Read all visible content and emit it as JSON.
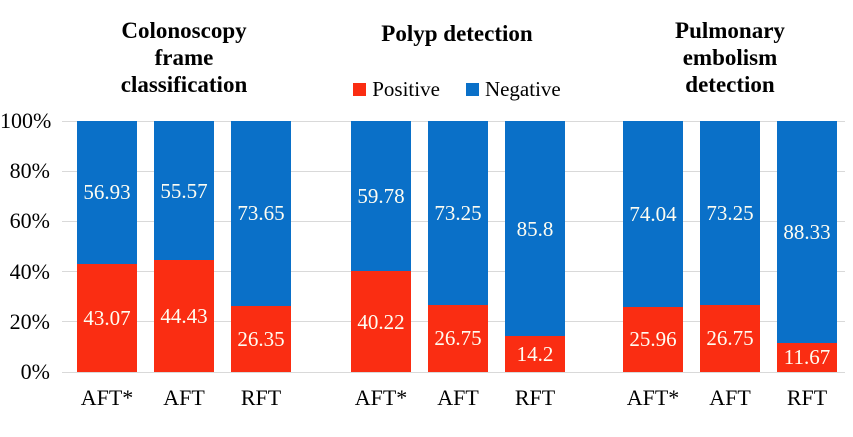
{
  "chart_data": {
    "type": "bar",
    "stacked": true,
    "unit": "percent",
    "ylim": [
      0,
      100
    ],
    "ytick_step": 20,
    "yticks": [
      "0%",
      "20%",
      "40%",
      "60%",
      "80%",
      "100%"
    ],
    "grid": "horizontal",
    "legend": {
      "position": "top-center",
      "items": [
        "Positive",
        "Negative"
      ]
    },
    "groups": [
      {
        "title_lines": [
          "Colonoscopy",
          "frame",
          "classification"
        ],
        "categories": [
          "AFT*",
          "AFT",
          "RFT"
        ],
        "series": [
          {
            "name": "Positive",
            "values": [
              43.07,
              44.43,
              26.35
            ]
          },
          {
            "name": "Negative",
            "values": [
              56.93,
              55.57,
              73.65
            ]
          }
        ]
      },
      {
        "title_lines": [
          "Polyp detection"
        ],
        "categories": [
          "AFT*",
          "AFT",
          "RFT"
        ],
        "series": [
          {
            "name": "Positive",
            "values": [
              40.22,
              26.75,
              14.2
            ]
          },
          {
            "name": "Negative",
            "values": [
              59.78,
              73.25,
              85.8
            ]
          }
        ]
      },
      {
        "title_lines": [
          "Pulmonary",
          "embolism",
          "detection"
        ],
        "categories": [
          "AFT*",
          "AFT",
          "RFT"
        ],
        "series": [
          {
            "name": "Positive",
            "values": [
              25.96,
              26.75,
              11.67
            ]
          },
          {
            "name": "Negative",
            "values": [
              74.04,
              73.25,
              88.33
            ]
          }
        ]
      }
    ]
  },
  "colors": {
    "positive": "#fa2d12",
    "negative": "#0a70c8",
    "gridline": "#d9d9d9",
    "value_label": "#fefdf2",
    "text": "#000000",
    "background": "#ffffff"
  }
}
